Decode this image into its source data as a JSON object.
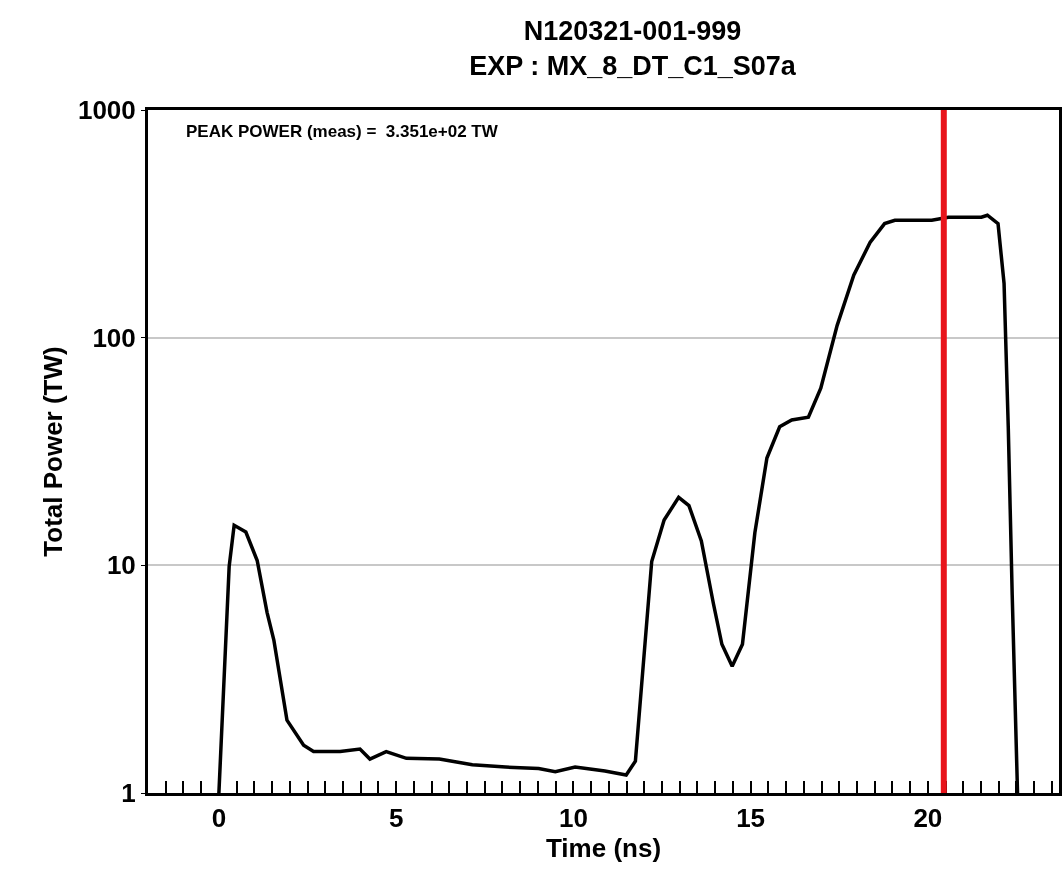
{
  "chart_data": {
    "type": "line",
    "title": "N120321-001-999",
    "subtitle": "EXP : MX_8_DT_C1_S07a",
    "xlabel": "Time (ns)",
    "ylabel": "Total Power (TW)",
    "annotations": [
      "PEAK POWER (meas) =  3.351e+02 TW"
    ],
    "log": "y",
    "grid": "y",
    "marker": "none",
    "line_style": "solid",
    "xlim": [
      -2,
      23.7
    ],
    "ylim": [
      1,
      1000
    ],
    "yticks": [
      1,
      10,
      100,
      1000
    ],
    "xticks": [
      {
        "value": -1.5,
        "label": null
      },
      {
        "value": -1,
        "label": null
      },
      {
        "value": -0.5,
        "label": null
      },
      0,
      {
        "value": 0.5,
        "label": null
      },
      {
        "value": 1,
        "label": null
      },
      {
        "value": 1.5,
        "label": null
      },
      {
        "value": 2,
        "label": null
      },
      {
        "value": 2.5,
        "label": null
      },
      {
        "value": 3,
        "label": null
      },
      {
        "value": 3.5,
        "label": null
      },
      {
        "value": 4,
        "label": null
      },
      {
        "value": 4.5,
        "label": null
      },
      5,
      {
        "value": 5.5,
        "label": null
      },
      {
        "value": 6,
        "label": null
      },
      {
        "value": 6.5,
        "label": null
      },
      {
        "value": 7,
        "label": null
      },
      {
        "value": 7.5,
        "label": null
      },
      {
        "value": 8,
        "label": null
      },
      {
        "value": 8.5,
        "label": null
      },
      {
        "value": 9,
        "label": null
      },
      {
        "value": 9.5,
        "label": null
      },
      10,
      {
        "value": 10.5,
        "label": null
      },
      {
        "value": 11,
        "label": null
      },
      {
        "value": 11.5,
        "label": null
      },
      {
        "value": 12,
        "label": null
      },
      {
        "value": 12.5,
        "label": null
      },
      {
        "value": 13,
        "label": null
      },
      {
        "value": 13.5,
        "label": null
      },
      {
        "value": 14,
        "label": null
      },
      {
        "value": 14.5,
        "label": null
      },
      15,
      {
        "value": 15.5,
        "label": null
      },
      {
        "value": 16,
        "label": null
      },
      {
        "value": 16.5,
        "label": null
      },
      {
        "value": 17,
        "label": null
      },
      {
        "value": 17.5,
        "label": null
      },
      {
        "value": 18,
        "label": null
      },
      {
        "value": 18.5,
        "label": null
      },
      {
        "value": 19,
        "label": null
      },
      {
        "value": 19.5,
        "label": null
      },
      20,
      {
        "value": 20.5,
        "label": null
      },
      {
        "value": 21,
        "label": null
      },
      {
        "value": 21.5,
        "label": null
      },
      {
        "value": 22,
        "label": null
      },
      {
        "value": 22.5,
        "label": null
      },
      {
        "value": 23,
        "label": null
      },
      {
        "value": 23.5,
        "label": null
      }
    ],
    "ref_lines": [
      {
        "axis": "x",
        "value": 20.45,
        "label": null,
        "color": "#e8141b"
      }
    ],
    "series": [
      {
        "color": "#000000",
        "x": [
          0,
          0.29,
          0.43,
          0.76,
          1.08,
          1.36,
          1.55,
          1.92,
          2.39,
          2.67,
          3.42,
          3.98,
          4.26,
          4.72,
          5.29,
          6.22,
          7.15,
          8.09,
          9.02,
          9.49,
          10.05,
          10.89,
          11.49,
          11.75,
          12.21,
          12.56,
          12.97,
          13.26,
          13.61,
          13.95,
          14.19,
          14.48,
          14.77,
          15.12,
          15.46,
          15.82,
          16.16,
          16.63,
          16.98,
          17.44,
          17.91,
          18.37,
          18.78,
          19.07,
          20.11,
          20.58,
          21.51,
          21.68,
          21.98,
          22.15,
          22.27,
          22.38,
          22.53
        ],
        "values": [
          1,
          9.9,
          15,
          14,
          10.5,
          6.2,
          4.7,
          2.09,
          1.62,
          1.52,
          1.52,
          1.56,
          1.41,
          1.52,
          1.42,
          1.41,
          1.33,
          1.3,
          1.28,
          1.24,
          1.3,
          1.25,
          1.2,
          1.38,
          10.4,
          15.8,
          19.9,
          18.3,
          12.8,
          6.8,
          4.5,
          3.6,
          4.5,
          13.9,
          29.6,
          40.6,
          43.5,
          44.7,
          60,
          113,
          188,
          262,
          317,
          328,
          328,
          338,
          338,
          345,
          317,
          173,
          39.7,
          7.4,
          1
        ]
      }
    ]
  }
}
